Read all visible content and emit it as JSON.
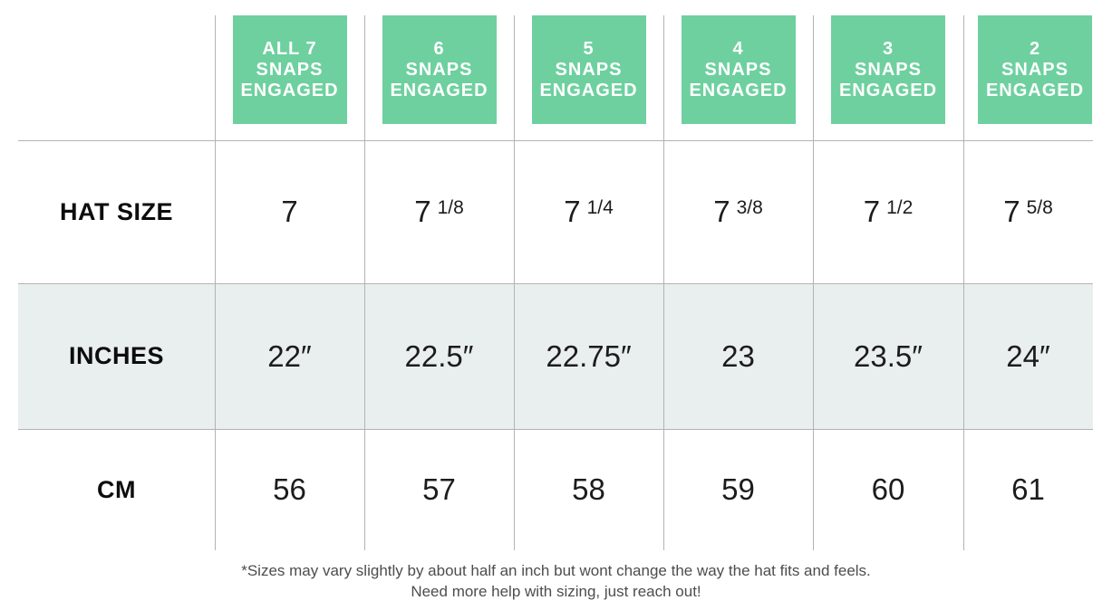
{
  "header": {
    "columns": [
      {
        "label": "ALL 7\nSNAPS\nENGAGED"
      },
      {
        "label": "6\nSNAPS\nENGAGED"
      },
      {
        "label": "5\nSNAPS\nENGAGED"
      },
      {
        "label": "4\nSNAPS\nENGAGED"
      },
      {
        "label": "3\nSNAPS\nENGAGED"
      },
      {
        "label": "2\nSNAPS\nENGAGED"
      }
    ]
  },
  "rows": {
    "hat_size": {
      "label": "HAT SIZE",
      "values": [
        {
          "base": "7",
          "frac": ""
        },
        {
          "base": "7",
          "frac": "1/8"
        },
        {
          "base": "7",
          "frac": "1/4"
        },
        {
          "base": "7",
          "frac": "3/8"
        },
        {
          "base": "7",
          "frac": "1/2"
        },
        {
          "base": "7",
          "frac": "5/8"
        }
      ]
    },
    "inches": {
      "label": "INCHES",
      "values": [
        "22″",
        "22.5″",
        "22.75″",
        "23",
        "23.5″",
        "24″"
      ]
    },
    "cm": {
      "label": "CM",
      "values": [
        "56",
        "57",
        "58",
        "59",
        "60",
        "61"
      ]
    }
  },
  "footnote": {
    "line1": "*Sizes may vary slightly by about half an inch but wont change the way the hat fits and feels.",
    "line2": "Need more help with sizing, just reach out!"
  },
  "colors": {
    "header_green": "#6ed09f",
    "header_text": "#ffffff",
    "row_highlight": "#e9efee",
    "grid_line": "#b3b3b3",
    "footnote_text": "#4d4d4d"
  },
  "chart_data": {
    "type": "table",
    "title": "Hat sizing chart by snaps engaged",
    "columns": [
      "ALL 7 SNAPS ENGAGED",
      "6 SNAPS ENGAGED",
      "5 SNAPS ENGAGED",
      "4 SNAPS ENGAGED",
      "3 SNAPS ENGAGED",
      "2 SNAPS ENGAGED"
    ],
    "rows": [
      {
        "label": "HAT SIZE",
        "values": [
          "7",
          "7 1/8",
          "7 1/4",
          "7 3/8",
          "7 1/2",
          "7 5/8"
        ]
      },
      {
        "label": "INCHES",
        "values": [
          "22″",
          "22.5″",
          "22.75″",
          "23",
          "23.5″",
          "24″"
        ]
      },
      {
        "label": "CM",
        "values": [
          56,
          57,
          58,
          59,
          60,
          61
        ]
      }
    ],
    "notes": "*Sizes may vary slightly by about half an inch but wont change the way the hat fits and feels. Need more help with sizing, just reach out!"
  }
}
